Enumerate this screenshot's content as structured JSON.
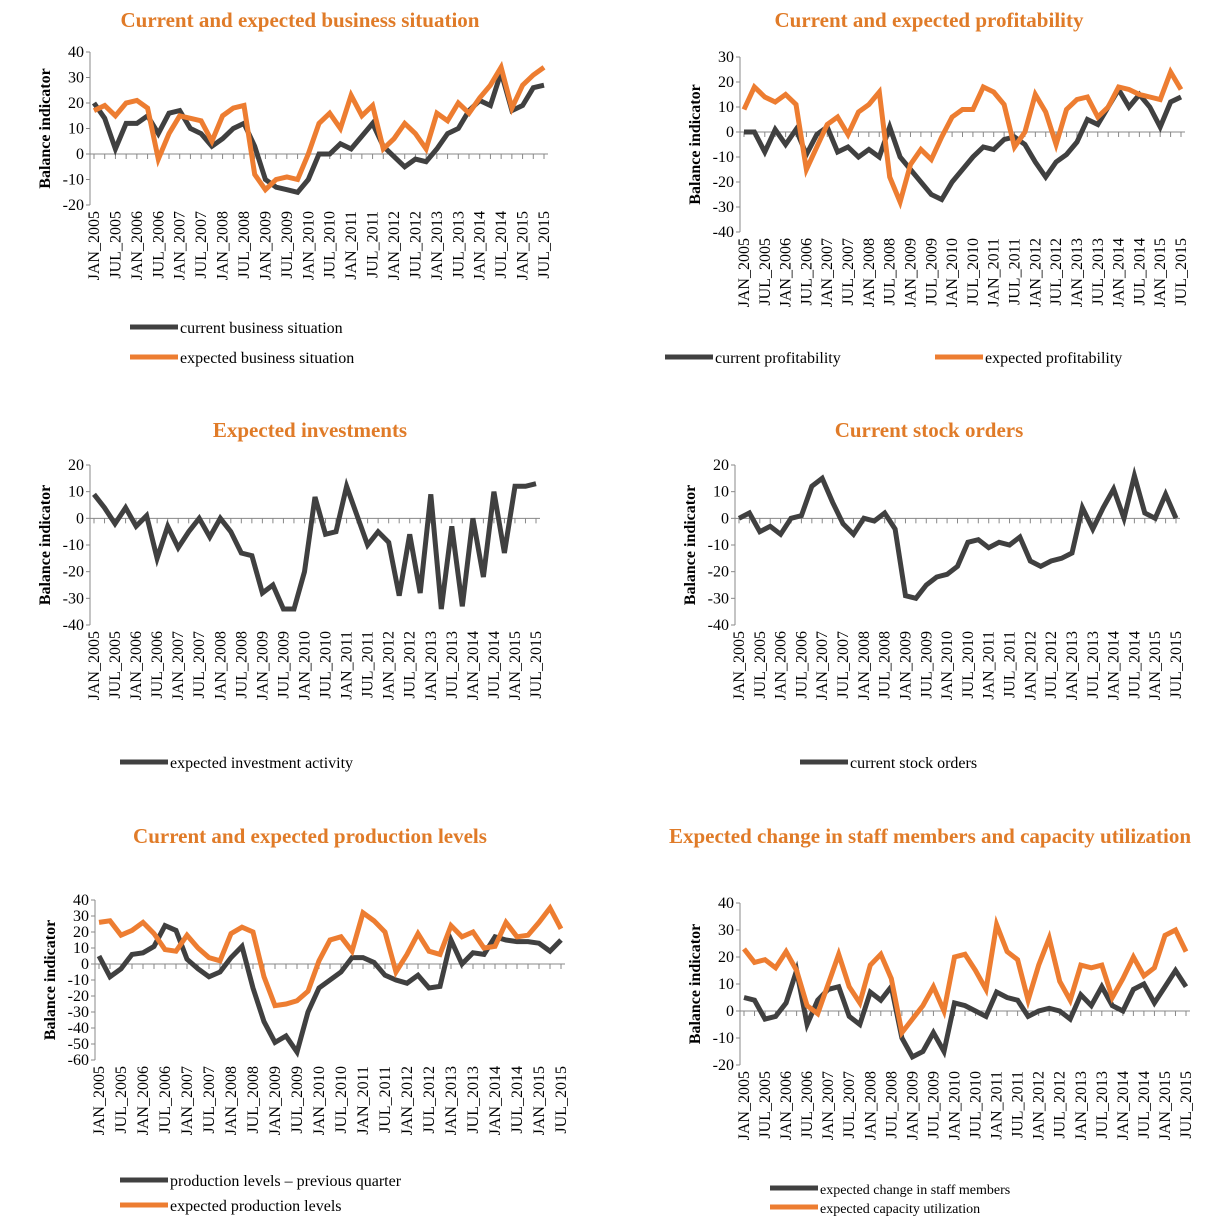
{
  "chart_data": [
    {
      "type": "line",
      "title": "Current and expected business situation",
      "y_label": "Balance indicator",
      "categories": [
        "JAN_2005",
        null,
        "JUL_2005",
        null,
        "JAN_2006",
        null,
        "JUL_2006",
        null,
        "JAN_2007",
        null,
        "JUL_2007",
        null,
        "JAN_2008",
        null,
        "JUL_2008",
        null,
        "JAN_2009",
        null,
        "JUL_2009",
        null,
        "JAN_2010",
        null,
        "JUL_2010",
        null,
        "JAN_2011",
        null,
        "JUL_2011",
        null,
        "JAN_2012",
        null,
        "JUL_2012",
        null,
        "JAN_2013",
        null,
        "JUL_2013",
        null,
        "JAN_2014",
        null,
        "JUL_2014",
        null,
        "JAN_2015",
        null,
        "JUL_2015"
      ],
      "series": [
        {
          "name": "current business situation",
          "color": "#404040",
          "values": [
            20,
            14,
            2,
            12,
            12,
            15,
            8,
            16,
            17,
            10,
            8,
            3,
            6,
            10,
            12,
            3,
            -10,
            -13,
            -14,
            -15,
            -10,
            0,
            0,
            4,
            2,
            7,
            12,
            3,
            -1,
            -5,
            -2,
            -3,
            2,
            8,
            10,
            17,
            21,
            19,
            32,
            17,
            19,
            26,
            27
          ]
        },
        {
          "name": "expected business situation",
          "color": "#ed7d31",
          "values": [
            17,
            19,
            15,
            20,
            21,
            18,
            -2,
            8,
            15,
            14,
            13,
            5,
            15,
            18,
            19,
            -8,
            -14,
            -10,
            -9,
            -10,
            0,
            12,
            16,
            10,
            23,
            15,
            19,
            2,
            6,
            12,
            8,
            2,
            16,
            13,
            20,
            16,
            22,
            27,
            34,
            18,
            27,
            31,
            34
          ]
        }
      ],
      "ylim": [
        -20,
        40
      ],
      "yticks": [
        -20,
        -10,
        0,
        10,
        20,
        30,
        40
      ]
    },
    {
      "type": "line",
      "title": "Current and expected profitability",
      "y_label": "Balance indicator",
      "categories": [
        "JAN_2005",
        null,
        "JUL_2005",
        null,
        "JAN_2006",
        null,
        "JUL_2006",
        null,
        "JAN_2007",
        null,
        "JUL_2007",
        null,
        "JAN_2008",
        null,
        "JUL_2008",
        null,
        "JAN_2009",
        null,
        "JUL_2009",
        null,
        "JAN_2010",
        null,
        "JUL_2010",
        null,
        "JAN_2011",
        null,
        "JUL_2011",
        null,
        "JAN_2012",
        null,
        "JUL_2012",
        null,
        "JAN_2013",
        null,
        "JUL_2013",
        null,
        "JAN_2014",
        null,
        "JUL_2014",
        null,
        "JAN_2015",
        null,
        "JUL_2015"
      ],
      "series": [
        {
          "name": "current profitability",
          "color": "#404040",
          "values": [
            0,
            0,
            -8,
            1,
            -5,
            1,
            -9,
            -1,
            2,
            -8,
            -6,
            -10,
            -7,
            -10,
            2,
            -10,
            -15,
            -20,
            -25,
            -27,
            -20,
            -15,
            -10,
            -6,
            -7,
            -3,
            -2,
            -5,
            -12,
            -18,
            -12,
            -9,
            -4,
            5,
            3,
            10,
            17,
            10,
            15,
            10,
            2,
            12,
            14
          ]
        },
        {
          "name": "expected profitability",
          "color": "#ed7d31",
          "values": [
            9,
            18,
            14,
            12,
            15,
            11,
            -15,
            -6,
            3,
            6,
            -1,
            8,
            11,
            16,
            -18,
            -28,
            -13,
            -7,
            -11,
            -2,
            6,
            9,
            9,
            18,
            16,
            11,
            -6,
            0,
            15,
            8,
            -5,
            9,
            13,
            14,
            6,
            10,
            18,
            17,
            15,
            14,
            13,
            24,
            17
          ]
        }
      ],
      "ylim": [
        -40,
        30
      ],
      "yticks": [
        -40,
        -30,
        -20,
        -10,
        0,
        10,
        20,
        30
      ]
    },
    {
      "type": "line",
      "title": "Expected investments",
      "y_label": "Balance indicator",
      "categories": [
        "JAN_2005",
        null,
        "JUL_2005",
        null,
        "JAN_2006",
        null,
        "JUL_2006",
        null,
        "JAN_2007",
        null,
        "JUL_2007",
        null,
        "JAN_2008",
        null,
        "JUL_2008",
        null,
        "JAN_2009",
        null,
        "JUL_2009",
        null,
        "JAN_2010",
        null,
        "JUL_2010",
        null,
        "JAN_2011",
        null,
        "JUL_2011",
        null,
        "JAN_2012",
        null,
        "JUL_2012",
        null,
        "JAN_2013",
        null,
        "JUL_2013",
        null,
        "JAN_2014",
        null,
        "JUL_2014",
        null,
        "JAN_2015",
        null,
        "JUL_2015"
      ],
      "series": [
        {
          "name": "expected investment activity",
          "color": "#404040",
          "values": [
            9,
            4,
            -2,
            4,
            -3,
            1,
            -15,
            -3,
            -11,
            -5,
            0,
            -7,
            0,
            -5,
            -13,
            -14,
            -28,
            -25,
            -34,
            -34,
            -20,
            8,
            -6,
            -5,
            12,
            1,
            -10,
            -5,
            -9,
            -29,
            -6,
            -28,
            9,
            -34,
            -3,
            -33,
            0,
            -22,
            10,
            -13,
            12,
            12,
            13
          ]
        }
      ],
      "ylim": [
        -40,
        20
      ],
      "yticks": [
        -40,
        -30,
        -20,
        -10,
        0,
        10,
        20
      ]
    },
    {
      "type": "line",
      "title": "Current stock orders",
      "y_label": "Balance indicator",
      "categories": [
        "JAN_2005",
        null,
        "JUL_2005",
        null,
        "JAN_2006",
        null,
        "JUL_2006",
        null,
        "JAN_2007",
        null,
        "JUL_2007",
        null,
        "JAN_2008",
        null,
        "JUL_2008",
        null,
        "JAN_2009",
        null,
        "JUL_2009",
        null,
        "JAN_2010",
        null,
        "JUL_2010",
        null,
        "JAN_2011",
        null,
        "JUL_2011",
        null,
        "JAN_2012",
        null,
        "JUL_2012",
        null,
        "JAN_2013",
        null,
        "JUL_2013",
        null,
        "JAN_2014",
        null,
        "JUL_2014",
        null,
        "JAN_2015",
        null,
        "JUL_2015"
      ],
      "series": [
        {
          "name": "current stock orders",
          "color": "#404040",
          "values": [
            0,
            2,
            -5,
            -3,
            -6,
            0,
            1,
            12,
            15,
            6,
            -2,
            -6,
            0,
            -1,
            2,
            -4,
            -29,
            -30,
            -25,
            -22,
            -21,
            -18,
            -9,
            -8,
            -11,
            -9,
            -10,
            -7,
            -16,
            -18,
            -16,
            -15,
            -13,
            4,
            -4,
            4,
            11,
            0,
            16,
            2,
            0,
            9,
            0
          ]
        }
      ],
      "ylim": [
        -40,
        20
      ],
      "yticks": [
        -40,
        -30,
        -20,
        -10,
        0,
        10,
        20
      ]
    },
    {
      "type": "line",
      "title": "Current and expected production levels",
      "y_label": "Balance indicator",
      "categories": [
        "JAN_2005",
        null,
        "JUL_2005",
        null,
        "JAN_2006",
        null,
        "JUL_2006",
        null,
        "JAN_2007",
        null,
        "JUL_2007",
        null,
        "JAN_2008",
        null,
        "JUL_2008",
        null,
        "JAN_2009",
        null,
        "JUL_2009",
        null,
        "JAN_2010",
        null,
        "JUL_2010",
        null,
        "JAN_2011",
        null,
        "JUL_2011",
        null,
        "JAN_2012",
        null,
        "JUL_2012",
        null,
        "JAN_2013",
        null,
        "JUL_2013",
        null,
        "JAN_2014",
        null,
        "JUL_2014",
        null,
        "JAN_2015",
        null,
        "JUL_2015"
      ],
      "series": [
        {
          "name": "production levels – previous quarter",
          "color": "#404040",
          "values": [
            5,
            -8,
            -3,
            6,
            7,
            11,
            24,
            21,
            3,
            -3,
            -8,
            -5,
            4,
            11,
            -15,
            -36,
            -49,
            -45,
            -55,
            -30,
            -15,
            -10,
            -5,
            4,
            4,
            1,
            -7,
            -10,
            -12,
            -7,
            -15,
            -14,
            15,
            0,
            7,
            6,
            17,
            15,
            14,
            14,
            13,
            8,
            15
          ]
        },
        {
          "name": "expected production levels",
          "color": "#ed7d31",
          "values": [
            26,
            27,
            18,
            21,
            26,
            19,
            9,
            8,
            18,
            10,
            4,
            2,
            19,
            23,
            20,
            -8,
            -26,
            -25,
            -23,
            -17,
            2,
            15,
            17,
            8,
            32,
            27,
            20,
            -5,
            6,
            19,
            8,
            6,
            24,
            17,
            20,
            10,
            11,
            26,
            17,
            18,
            26,
            35,
            22
          ]
        }
      ],
      "ylim": [
        -60,
        40
      ],
      "yticks": [
        -60,
        -50,
        -40,
        -30,
        -20,
        -10,
        0,
        10,
        20,
        30,
        40
      ]
    },
    {
      "type": "line",
      "title": "Expected change in staff members and capacity utilization",
      "y_label": "Balance indicator",
      "categories": [
        "JAN_2005",
        null,
        "JUL_2005",
        null,
        "JAN_2006",
        null,
        "JUL_2006",
        null,
        "JAN_2007",
        null,
        "JUL_2007",
        null,
        "JAN_2008",
        null,
        "JUL_2008",
        null,
        "JAN_2009",
        null,
        "JUL_2009",
        null,
        "JAN_2010",
        null,
        "JUL_2010",
        null,
        "JAN_2011",
        null,
        "JUL_2011",
        null,
        "JAN_2012",
        null,
        "JUL_2012",
        null,
        "JAN_2013",
        null,
        "JUL_2013",
        null,
        "JAN_2014",
        null,
        "JUL_2014",
        null,
        "JAN_2015",
        null,
        "JUL_2015"
      ],
      "series": [
        {
          "name": "expected change in staff members",
          "color": "#404040",
          "values": [
            5,
            4,
            -3,
            -2,
            3,
            15,
            -5,
            4,
            8,
            9,
            -2,
            -5,
            7,
            4,
            9,
            -10,
            -17,
            -15,
            -8,
            -15,
            3,
            2,
            0,
            -2,
            7,
            5,
            4,
            -2,
            0,
            1,
            0,
            -3,
            6,
            2,
            9,
            2,
            0,
            8,
            10,
            3,
            9,
            15,
            9
          ]
        },
        {
          "name": "expected capacity utilization",
          "color": "#ed7d31",
          "values": [
            23,
            18,
            19,
            16,
            22,
            15,
            2,
            -1,
            10,
            21,
            9,
            3,
            17,
            21,
            12,
            -8,
            -3,
            2,
            9,
            0,
            20,
            21,
            15,
            8,
            32,
            22,
            19,
            4,
            17,
            27,
            11,
            4,
            17,
            16,
            17,
            5,
            12,
            20,
            13,
            16,
            28,
            30,
            22
          ]
        }
      ],
      "ylim": [
        -20,
        40
      ],
      "yticks": [
        -20,
        -10,
        0,
        10,
        20,
        30,
        40
      ]
    }
  ]
}
